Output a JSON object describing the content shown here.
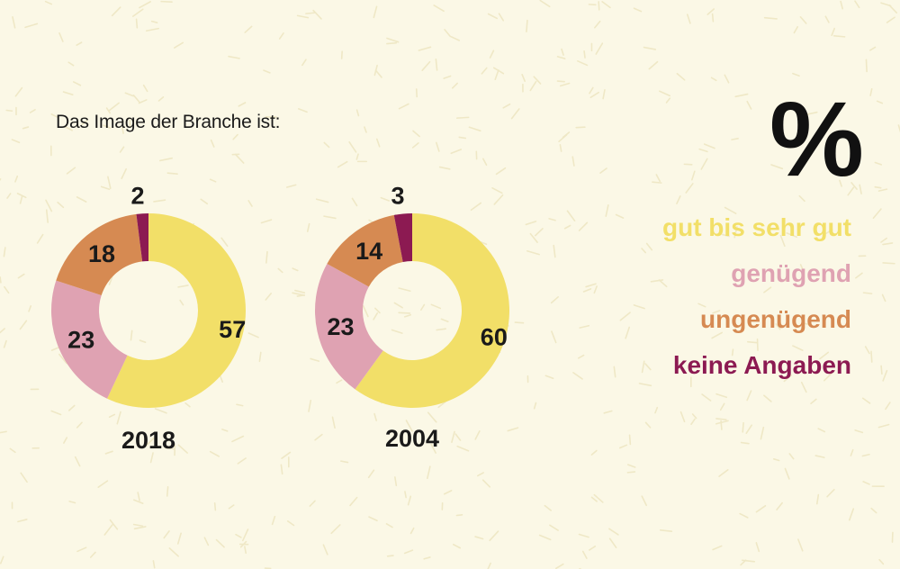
{
  "title": "Das Image der Branche ist:",
  "unit_symbol": "%",
  "colors": {
    "background": "#fbf8e6",
    "texture": "#efe8c6",
    "gut bis sehr gut": "#f2df68",
    "genügend": "#dfa2b2",
    "ungenügend": "#d68a52",
    "keine Angaben": "#8c1a52"
  },
  "legend": [
    {
      "label": "gut bis sehr gut",
      "color": "#f2df68"
    },
    {
      "label": "genügend",
      "color": "#dfa2b2"
    },
    {
      "label": "ungenügend",
      "color": "#d68a52"
    },
    {
      "label": "keine Angaben",
      "color": "#8c1a52"
    }
  ],
  "chart_data": {
    "type": "pie",
    "variant": "donut",
    "title": "Das Image der Branche ist:",
    "unit": "%",
    "legend_placement": "right",
    "categories": [
      "gut bis sehr gut",
      "genügend",
      "ungenügend",
      "keine Angaben"
    ],
    "series": [
      {
        "name": "2018",
        "values": [
          57,
          23,
          18,
          2
        ]
      },
      {
        "name": "2004",
        "values": [
          60,
          23,
          14,
          3
        ]
      }
    ]
  }
}
